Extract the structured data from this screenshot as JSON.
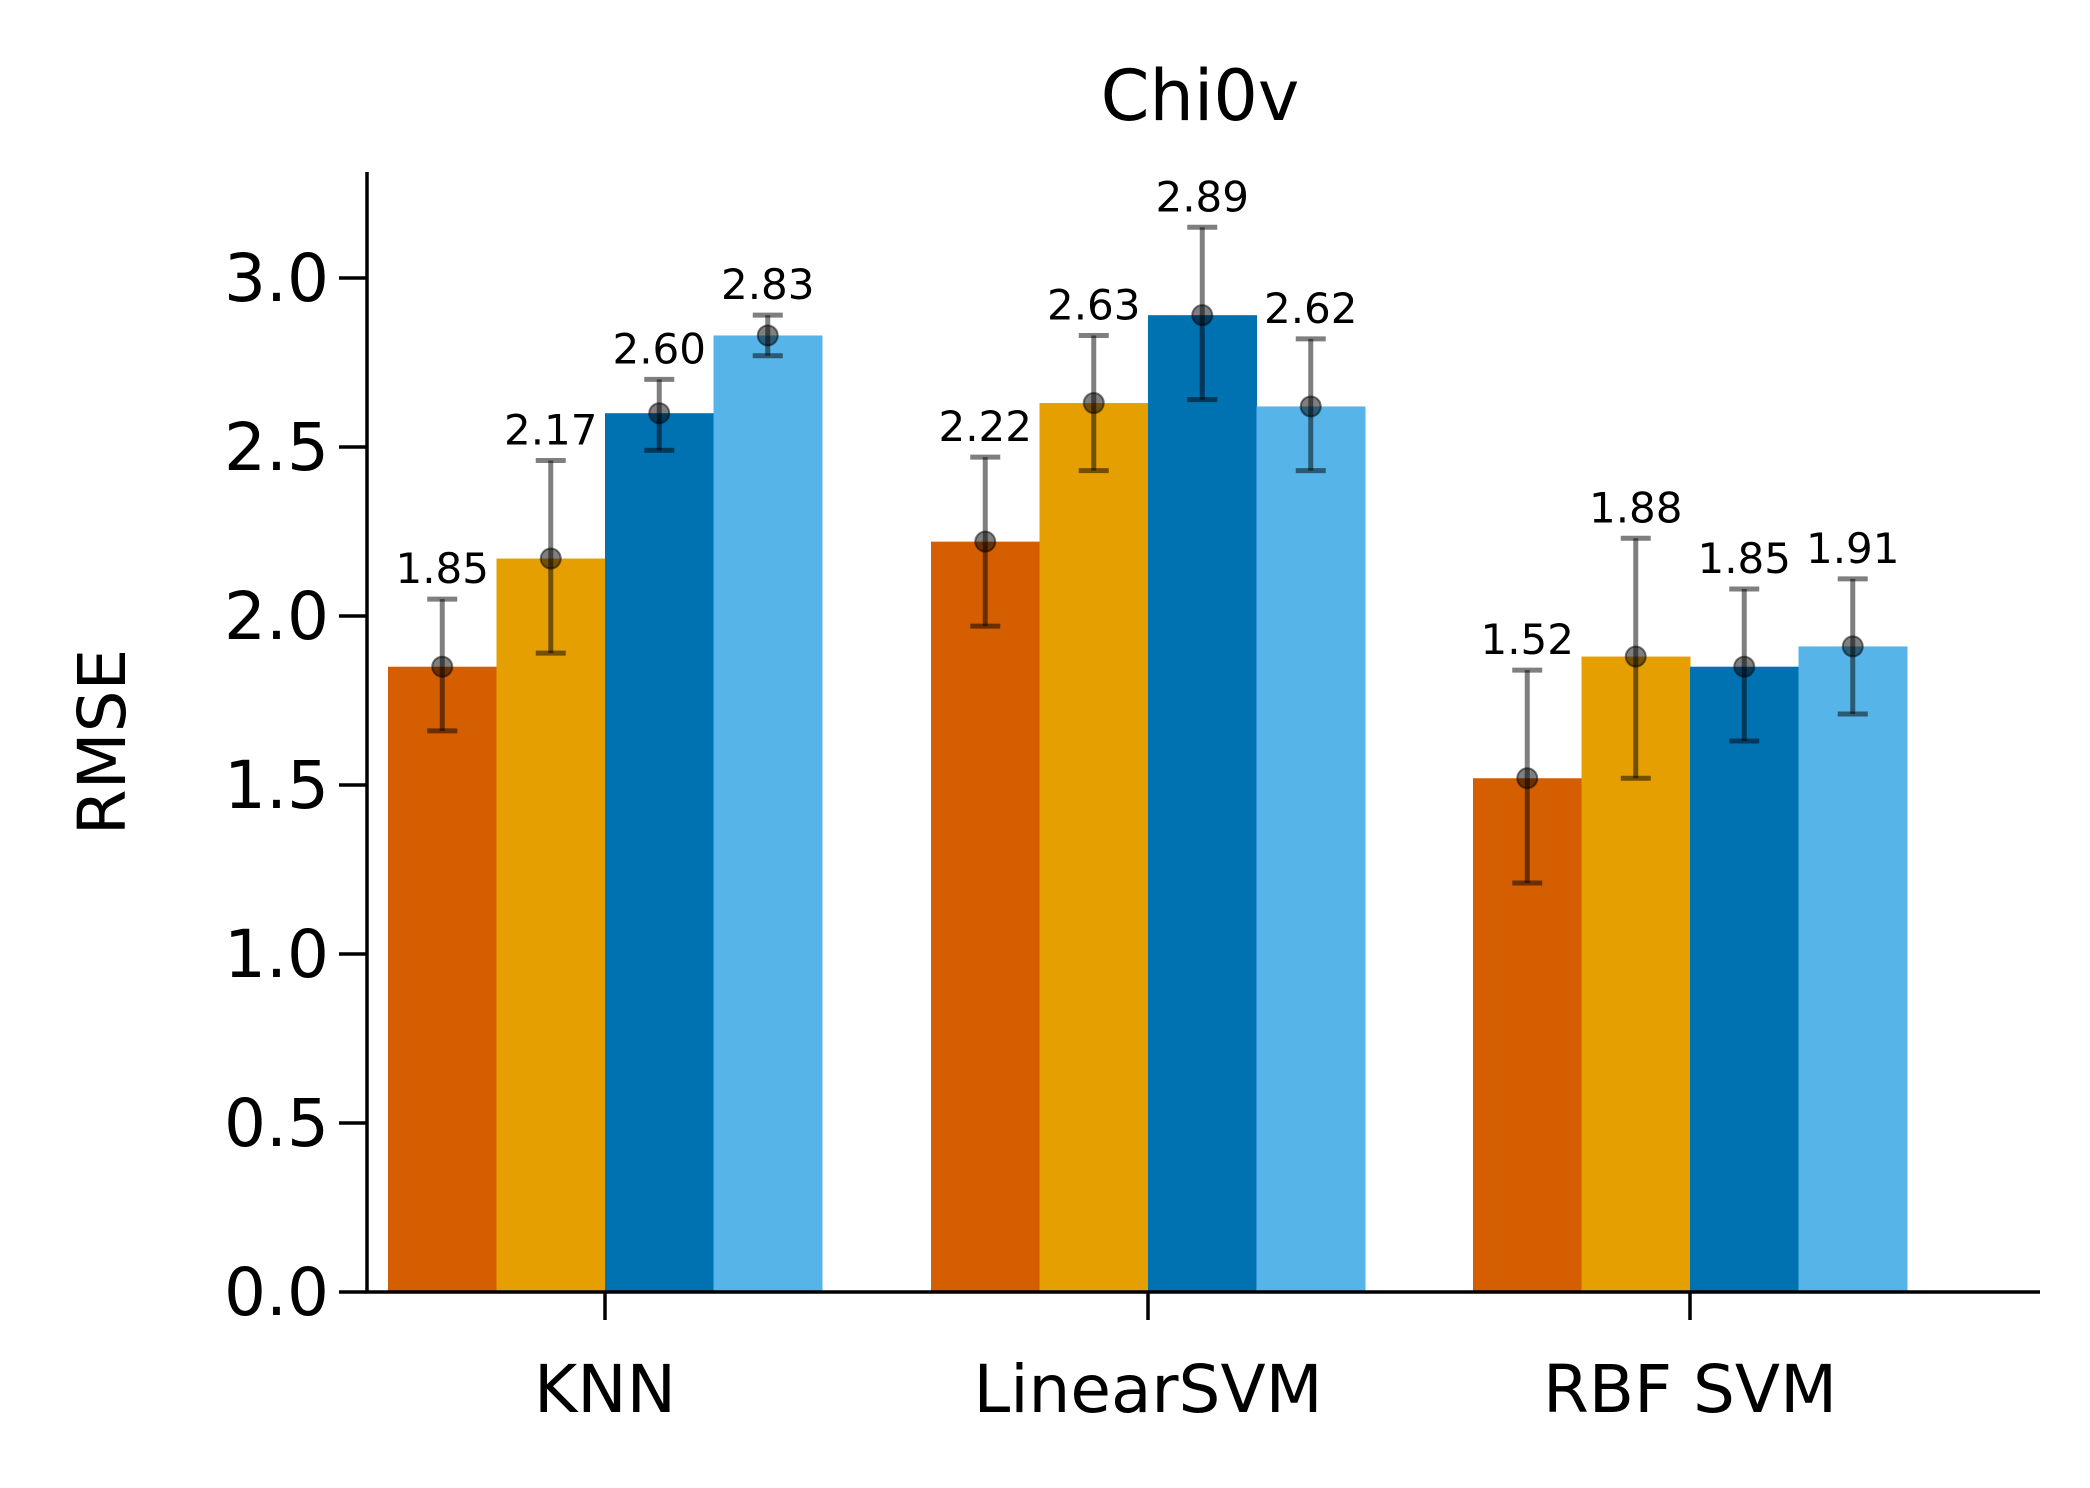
{
  "chart_data": {
    "type": "bar",
    "title": "Chi0v",
    "xlabel": "",
    "ylabel": "RMSE",
    "ylim": [
      0,
      3.3
    ],
    "yticks": [
      "0.0",
      "0.5",
      "1.0",
      "1.5",
      "2.0",
      "2.5",
      "3.0"
    ],
    "categories": [
      "KNN",
      "LinearSVM",
      "RBF SVM"
    ],
    "grid": false,
    "legend": "none",
    "series": [
      {
        "color": "#D55E00",
        "values": [
          1.85,
          2.22,
          1.52
        ],
        "err_low": [
          1.66,
          1.97,
          1.21
        ],
        "err_high": [
          2.05,
          2.47,
          1.84
        ]
      },
      {
        "color": "#E69F00",
        "values": [
          2.17,
          2.63,
          1.88
        ],
        "err_low": [
          1.89,
          2.43,
          1.52
        ],
        "err_high": [
          2.46,
          2.83,
          2.23
        ]
      },
      {
        "color": "#0072B2",
        "values": [
          2.6,
          2.89,
          1.85
        ],
        "err_low": [
          2.49,
          2.64,
          1.63
        ],
        "err_high": [
          2.7,
          3.15,
          2.08
        ]
      },
      {
        "color": "#56B4E9",
        "values": [
          2.83,
          2.62,
          1.91
        ],
        "err_low": [
          2.77,
          2.43,
          1.71
        ],
        "err_high": [
          2.89,
          2.82,
          2.11
        ]
      }
    ],
    "data_labels": [
      [
        "1.85",
        "2.22",
        "1.52"
      ],
      [
        "2.17",
        "2.63",
        "1.88"
      ],
      [
        "2.60",
        "2.89",
        "1.85"
      ],
      [
        "2.83",
        "2.62",
        "1.91"
      ]
    ]
  }
}
